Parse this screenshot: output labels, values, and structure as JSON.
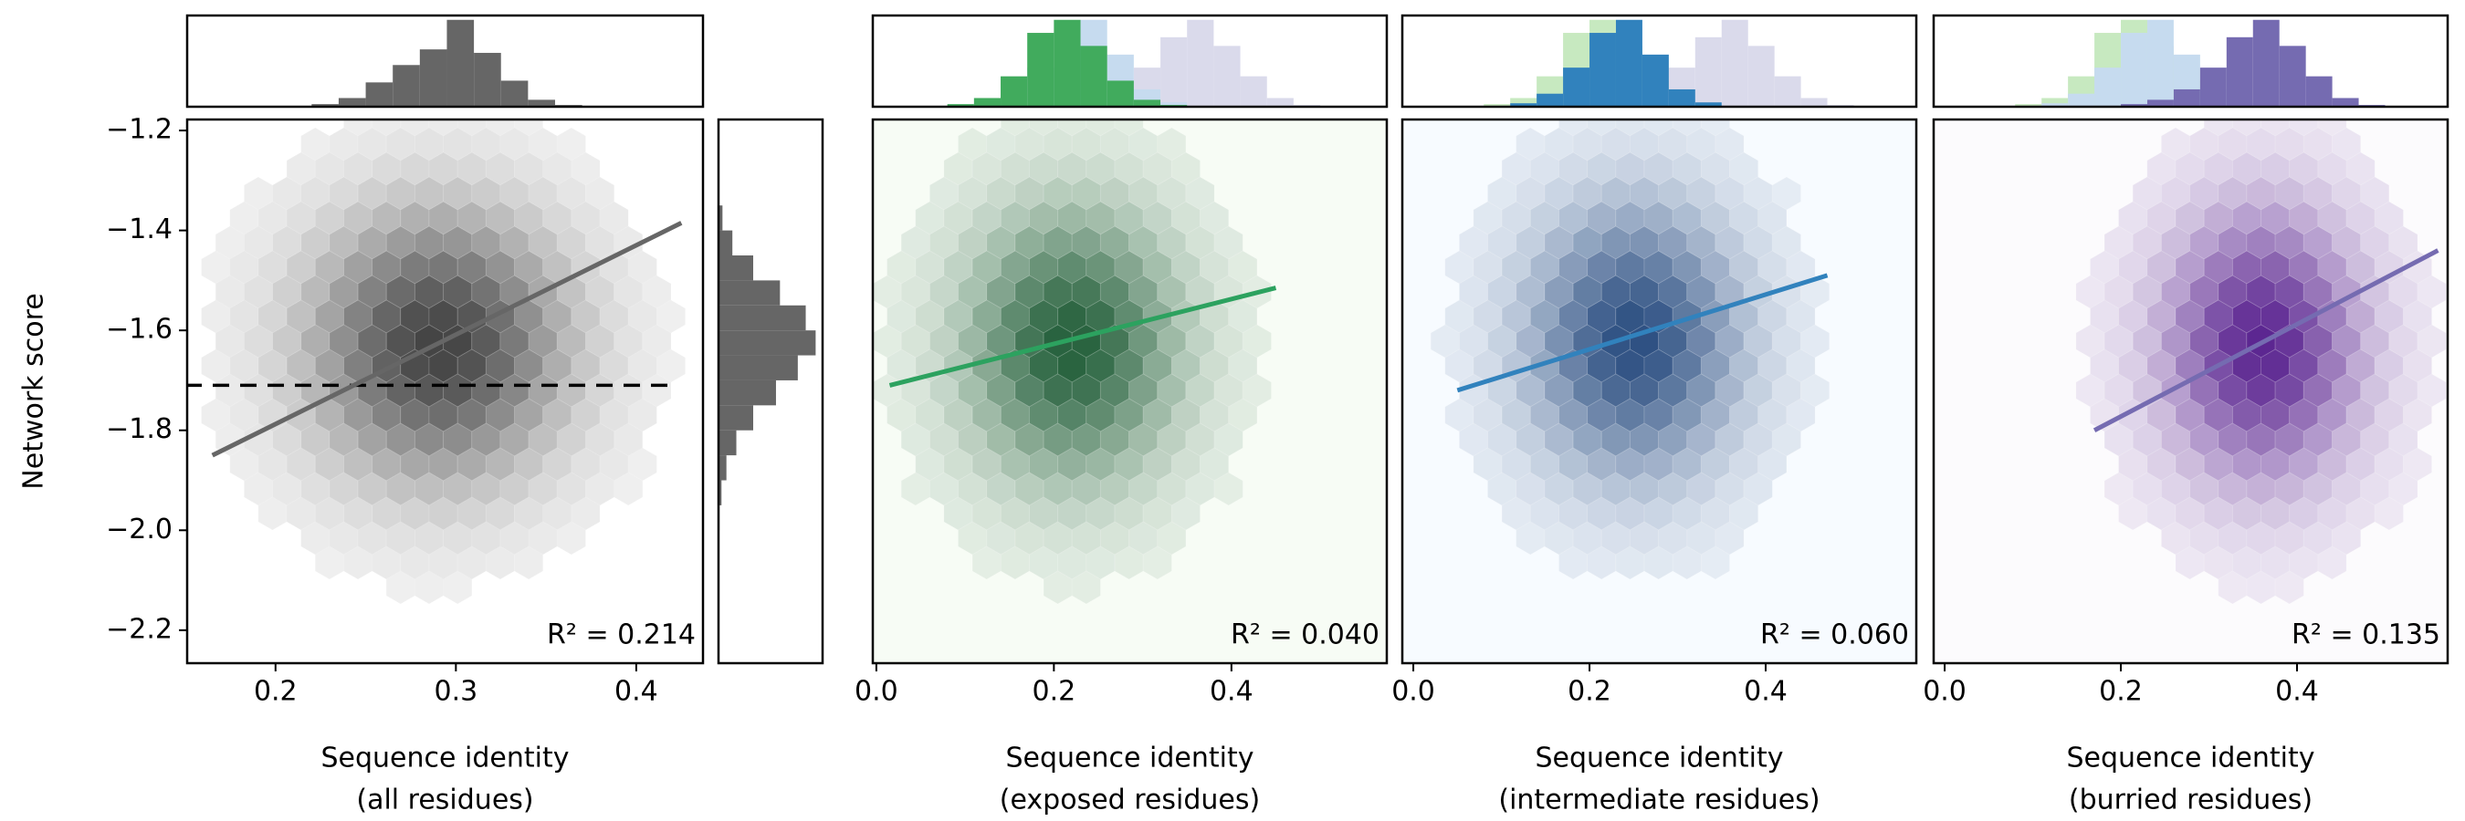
{
  "chart_data": [
    {
      "type": "hexbin",
      "ylabel": "Network score",
      "xlabel": [
        "Sequence identity",
        "(all residues)"
      ],
      "annotation": "R² = 0.214",
      "color": "#222222",
      "background": "#ffffff",
      "xlim": [
        0.151,
        0.437
      ],
      "xticks": [
        0.2,
        0.3,
        0.4
      ],
      "ylim": [
        -2.266,
        -1.178
      ],
      "yticks": [
        {
          "value": -2.2,
          "label": "−2.2"
        },
        {
          "value": -2.0,
          "label": "−2.0"
        },
        {
          "value": -1.8,
          "label": "−1.8"
        },
        {
          "value": -1.6,
          "label": "−1.6"
        },
        {
          "value": -1.4,
          "label": "−1.4"
        },
        {
          "value": -1.2,
          "label": "−1.2"
        }
      ],
      "density": {
        "center": [
          0.29,
          -1.63
        ],
        "sd": [
          0.045,
          0.17
        ]
      },
      "fit": {
        "x": [
          0.165,
          0.425
        ],
        "y": [
          -1.85,
          -1.385
        ],
        "color": "#666666"
      },
      "hline": {
        "x": [
          0.15,
          0.42
        ],
        "y": -1.71,
        "color": "#000000"
      },
      "top_hist": {
        "bins": [
          0.19,
          0.205,
          0.22,
          0.235,
          0.25,
          0.265,
          0.28,
          0.295,
          0.31,
          0.325,
          0.34,
          0.355,
          0.37
        ],
        "ylim": [
          0,
          105
        ],
        "series": [
          {
            "color": "#666666",
            "values": [
              0,
              1,
              3,
              10,
              28,
              48,
              66,
              100,
              62,
              30,
              8,
              2
            ]
          }
        ]
      },
      "side_hist": {
        "bins": [
          -2.0,
          -1.95,
          -1.9,
          -1.85,
          -1.8,
          -1.75,
          -1.7,
          -1.65,
          -1.6,
          -1.55,
          -1.5,
          -1.45,
          -1.4,
          -1.35
        ],
        "xlim": [
          0,
          105
        ],
        "color": "#666666",
        "values": [
          1,
          3,
          8,
          18,
          35,
          58,
          80,
          98,
          88,
          62,
          35,
          14,
          4
        ]
      }
    },
    {
      "type": "hexbin",
      "xlabel": [
        "Sequence identity",
        "(exposed residues)"
      ],
      "annotation": "R² = 0.040",
      "color": "#00441b",
      "background": "#f7fcf5",
      "xlim": [
        -0.004,
        0.575
      ],
      "xticks": [
        {
          "value": 0,
          "label": "0.0"
        },
        0.2,
        0.4
      ],
      "ylim": [
        -2.266,
        -1.178
      ],
      "density": {
        "center": [
          0.22,
          -1.63
        ],
        "sd": [
          0.075,
          0.17
        ]
      },
      "fit": {
        "x": [
          0.015,
          0.45
        ],
        "y": [
          -1.71,
          -1.515
        ],
        "color": "#2ca25f"
      },
      "top_hist": {
        "bins": [
          0.05,
          0.08,
          0.11,
          0.14,
          0.17,
          0.2,
          0.23,
          0.26,
          0.29,
          0.32,
          0.35,
          0.38,
          0.41,
          0.44,
          0.47,
          0.5,
          0.53
        ],
        "ylim": [
          0,
          105
        ],
        "series": [
          {
            "color": "#dadaeb",
            "values": [
              0,
              0,
              0,
              0,
              1,
              3,
              8,
              20,
              45,
              80,
              100,
              70,
              35,
              10,
              2,
              0
            ]
          },
          {
            "color": "#c6dbef",
            "values": [
              0,
              1,
              4,
              15,
              45,
              85,
              100,
              60,
              20,
              5,
              1,
              0,
              0,
              0,
              0,
              0
            ]
          },
          {
            "color": "#41ab5d",
            "values": [
              1,
              3,
              10,
              35,
              85,
              100,
              70,
              30,
              8,
              2,
              0,
              0,
              0,
              0,
              0,
              0
            ]
          }
        ]
      }
    },
    {
      "type": "hexbin",
      "xlabel": [
        "Sequence identity",
        "(intermediate residues)"
      ],
      "annotation": "R² = 0.060",
      "color": "#08306b",
      "background": "#f7fbff",
      "xlim": [
        -0.0125,
        0.571
      ],
      "xticks": [
        {
          "value": 0,
          "label": "0.0"
        },
        0.2,
        0.4
      ],
      "ylim": [
        -2.266,
        -1.178
      ],
      "density": {
        "center": [
          0.25,
          -1.62
        ],
        "sd": [
          0.075,
          0.17
        ]
      },
      "fit": {
        "x": [
          0.05,
          0.47
        ],
        "y": [
          -1.72,
          -1.49
        ],
        "color": "#3182bd"
      },
      "top_hist": {
        "bins": [
          0.05,
          0.08,
          0.11,
          0.14,
          0.17,
          0.2,
          0.23,
          0.26,
          0.29,
          0.32,
          0.35,
          0.38,
          0.41,
          0.44,
          0.47,
          0.5,
          0.53
        ],
        "ylim": [
          0,
          105
        ],
        "series": [
          {
            "color": "#c7e9c0",
            "values": [
              1,
              3,
              10,
              35,
              85,
              100,
              70,
              30,
              8,
              2,
              0,
              0,
              0,
              0,
              0,
              0
            ]
          },
          {
            "color": "#dadaeb",
            "values": [
              0,
              0,
              0,
              0,
              1,
              3,
              8,
              20,
              45,
              80,
              100,
              70,
              35,
              10,
              2,
              0
            ]
          },
          {
            "color": "#3182bd",
            "values": [
              0,
              1,
              4,
              15,
              45,
              85,
              100,
              60,
              20,
              5,
              1,
              0,
              0,
              0,
              0,
              0
            ]
          }
        ]
      }
    },
    {
      "type": "hexbin",
      "xlabel": [
        "Sequence identity",
        "(burried residues)"
      ],
      "annotation": "R² = 0.135",
      "color": "#3f007d",
      "background": "#fcfbfd",
      "xlim": [
        -0.0125,
        0.571
      ],
      "xticks": [
        {
          "value": 0,
          "label": "0.0"
        },
        0.2,
        0.4
      ],
      "ylim": [
        -2.266,
        -1.178
      ],
      "density": {
        "center": [
          0.36,
          -1.63
        ],
        "sd": [
          0.07,
          0.17
        ]
      },
      "fit": {
        "x": [
          0.17,
          0.56
        ],
        "y": [
          -1.8,
          -1.44
        ],
        "color": "#756bb1"
      },
      "top_hist": {
        "bins": [
          0.05,
          0.08,
          0.11,
          0.14,
          0.17,
          0.2,
          0.23,
          0.26,
          0.29,
          0.32,
          0.35,
          0.38,
          0.41,
          0.44,
          0.47,
          0.5,
          0.53
        ],
        "ylim": [
          0,
          105
        ],
        "series": [
          {
            "color": "#c7e9c0",
            "values": [
              1,
              3,
              10,
              35,
              85,
              100,
              70,
              30,
              8,
              2,
              0,
              0,
              0,
              0,
              0,
              0
            ]
          },
          {
            "color": "#c6dbef",
            "values": [
              0,
              1,
              4,
              15,
              45,
              85,
              100,
              60,
              20,
              5,
              1,
              0,
              0,
              0,
              0,
              0
            ]
          },
          {
            "color": "#756bb1",
            "values": [
              0,
              0,
              0,
              0,
              1,
              3,
              8,
              20,
              45,
              80,
              100,
              70,
              35,
              10,
              2,
              0
            ]
          }
        ]
      }
    }
  ]
}
